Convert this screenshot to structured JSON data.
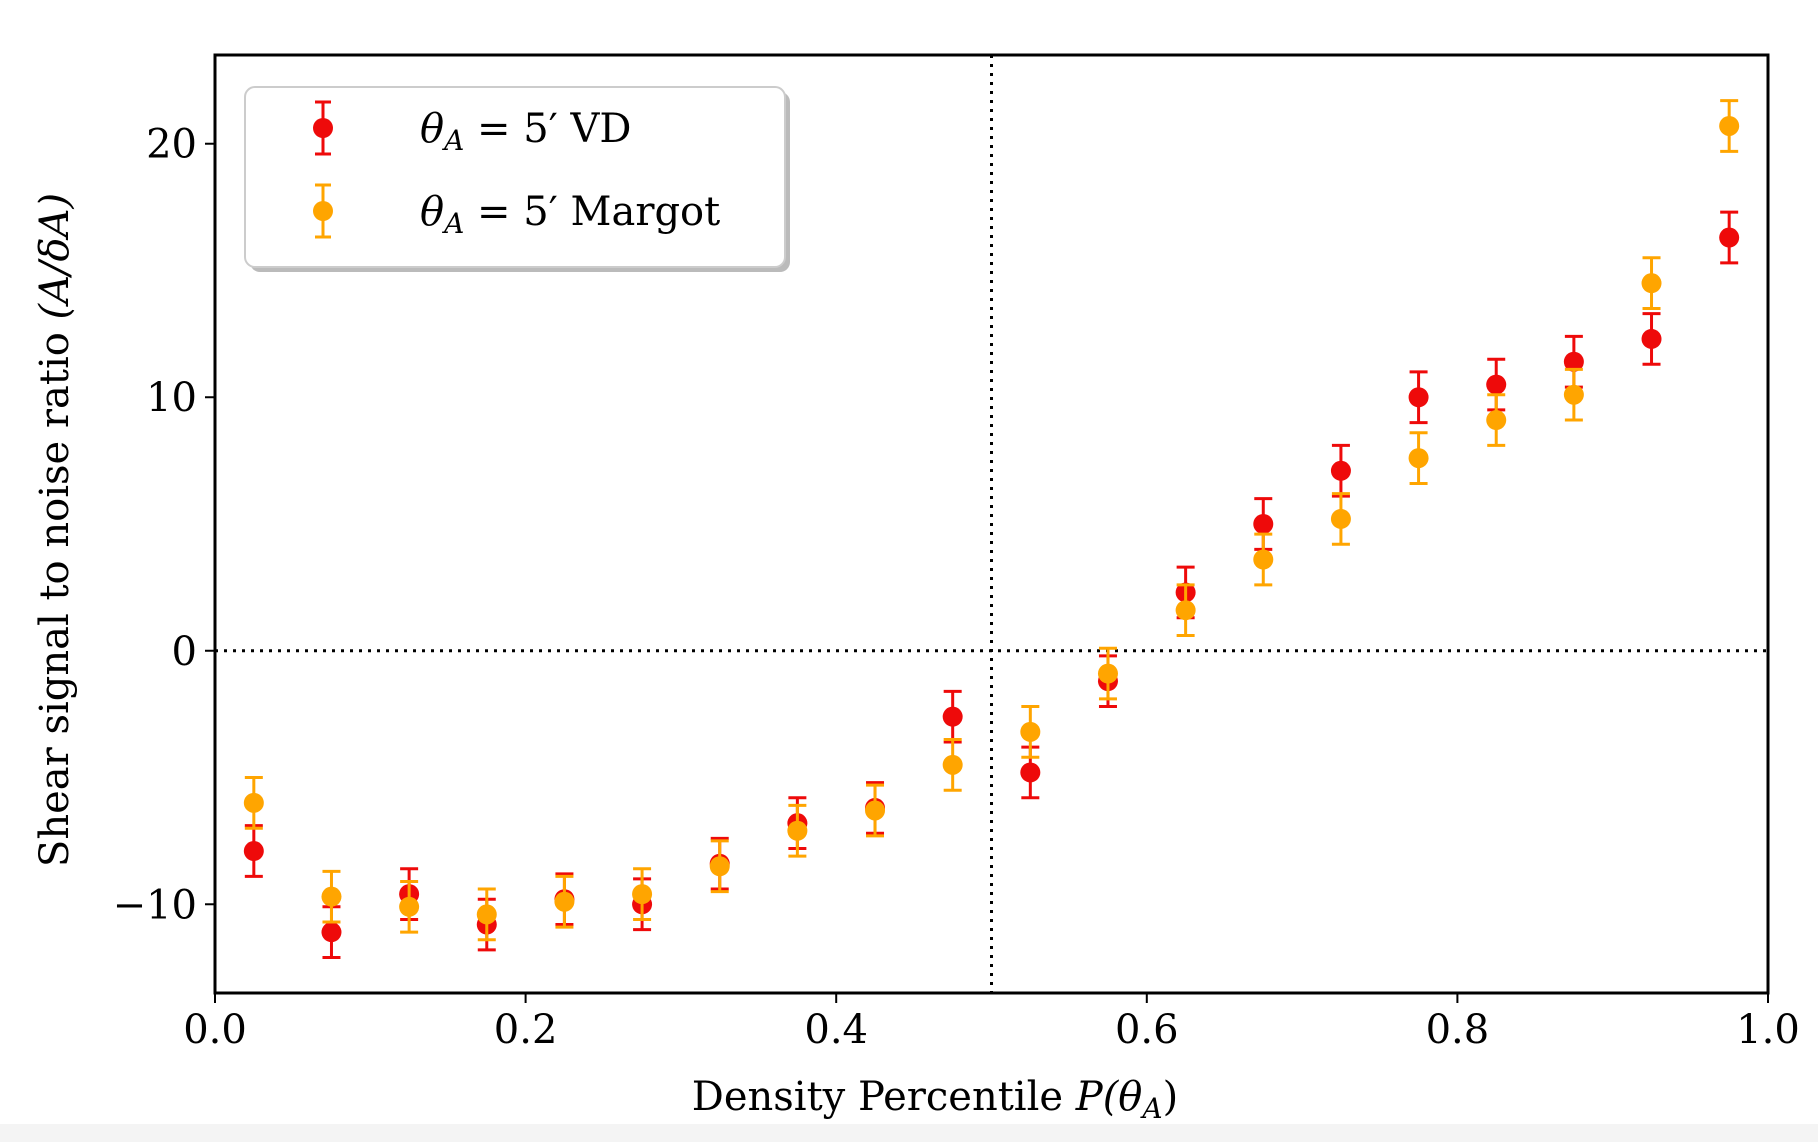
{
  "chart_data": {
    "type": "scatter",
    "xlabel_text": "Density Percentile ",
    "xlabel_math": "P(θ",
    "xlabel_math_sub": "A",
    "xlabel_math_end": ")",
    "ylabel_text": "Shear signal to noise ratio ",
    "ylabel_math": "(A/δA)",
    "xlim": [
      0.0,
      1.0
    ],
    "ylim": [
      -13.5,
      23.5
    ],
    "xticks": [
      0.0,
      0.2,
      0.4,
      0.6,
      0.8,
      1.0
    ],
    "xtick_labels": [
      "0.0",
      "0.2",
      "0.4",
      "0.6",
      "0.8",
      "1.0"
    ],
    "yticks": [
      -10,
      0,
      10,
      20
    ],
    "ytick_labels": [
      "−10",
      "0",
      "10",
      "20"
    ],
    "reference_lines": {
      "x": 0.5,
      "y": 0,
      "style": "dotted",
      "color": "#000000"
    },
    "legend": {
      "placement": "upper-left"
    },
    "x": [
      0.025,
      0.075,
      0.125,
      0.175,
      0.225,
      0.275,
      0.325,
      0.375,
      0.425,
      0.475,
      0.525,
      0.575,
      0.625,
      0.675,
      0.725,
      0.775,
      0.825,
      0.875,
      0.925,
      0.975
    ],
    "series": [
      {
        "legend_math": "θ",
        "legend_sub": "A",
        "legend_rest": " = 5′ VD",
        "color": "#ee0a0a",
        "values": [
          -7.9,
          -11.1,
          -9.6,
          -10.8,
          -9.8,
          -10.0,
          -8.4,
          -6.8,
          -6.2,
          -2.6,
          -4.8,
          -1.2,
          2.3,
          5.0,
          7.1,
          10.0,
          10.5,
          11.4,
          12.3,
          16.3
        ],
        "errors": [
          1.0,
          1.0,
          1.0,
          1.0,
          1.0,
          1.0,
          1.0,
          1.0,
          1.0,
          1.0,
          1.0,
          1.0,
          1.0,
          1.0,
          1.0,
          1.0,
          1.0,
          1.0,
          1.0,
          1.0
        ]
      },
      {
        "legend_math": "θ",
        "legend_sub": "A",
        "legend_rest": " = 5′ Margot",
        "color": "#ffa500",
        "values": [
          -6.0,
          -9.7,
          -10.1,
          -10.4,
          -9.9,
          -9.6,
          -8.5,
          -7.1,
          -6.3,
          -4.5,
          -3.2,
          -0.9,
          1.6,
          3.6,
          5.2,
          7.6,
          9.1,
          10.1,
          14.5,
          20.7
        ],
        "errors": [
          1.0,
          1.0,
          1.0,
          1.0,
          1.0,
          1.0,
          1.0,
          1.0,
          1.0,
          1.0,
          1.0,
          1.0,
          1.0,
          1.0,
          1.0,
          1.0,
          1.0,
          1.0,
          1.0,
          1.0
        ]
      }
    ]
  }
}
